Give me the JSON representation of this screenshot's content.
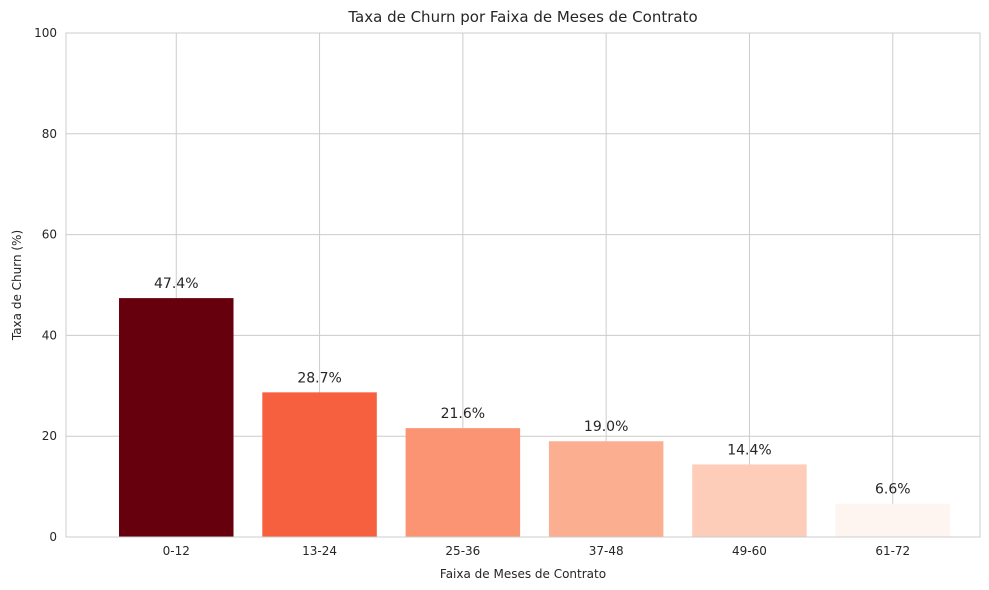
{
  "chart_data": {
    "type": "bar",
    "title": "Taxa de Churn por Faixa de Meses de Contrato",
    "xlabel": "Faixa de Meses de Contrato",
    "ylabel": "Taxa de Churn (%)",
    "categories": [
      "0-12",
      "13-24",
      "25-36",
      "37-48",
      "49-60",
      "61-72"
    ],
    "values": [
      47.4,
      28.7,
      21.6,
      19.0,
      14.4,
      6.6
    ],
    "data_labels": [
      "47.4%",
      "28.7%",
      "21.6%",
      "19.0%",
      "14.4%",
      "6.6%"
    ],
    "colors": [
      "#67000d",
      "#f6603f",
      "#fb9473",
      "#fcae91",
      "#fdcdb9",
      "#fff5f0"
    ],
    "ylim": [
      0,
      100
    ],
    "yticks": [
      0,
      20,
      40,
      60,
      80,
      100
    ],
    "ytick_labels": [
      "0",
      "20",
      "40",
      "60",
      "80",
      "100"
    ],
    "grid": true,
    "legend": null
  }
}
